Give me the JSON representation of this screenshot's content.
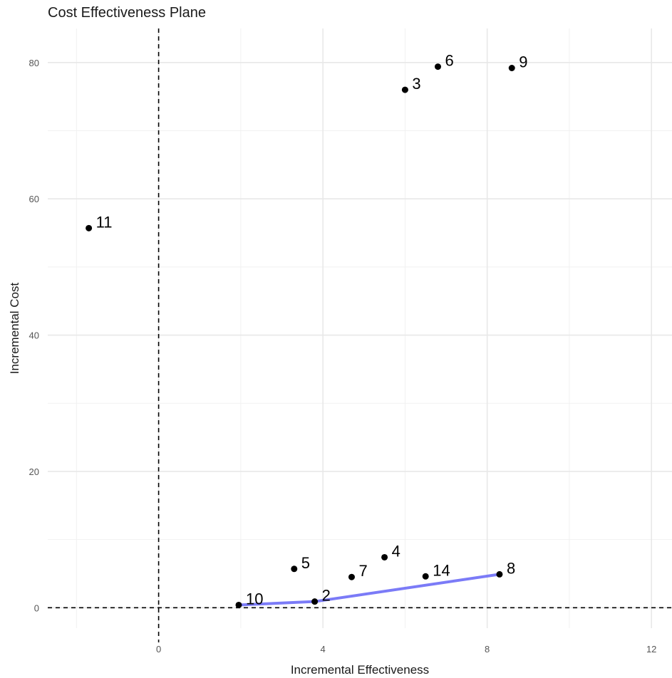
{
  "chart_data": {
    "type": "scatter",
    "title": "Cost Effectiveness Plane",
    "xlabel": "Incremental Effectiveness",
    "ylabel": "Incremental Cost",
    "xlim": [
      -2.7,
      12.5
    ],
    "ylim": [
      -3,
      85
    ],
    "x_ticks": [
      0,
      4,
      8,
      12
    ],
    "y_ticks": [
      0,
      20,
      40,
      60,
      80
    ],
    "grid": true,
    "reference_lines": {
      "x": 0,
      "y": 0,
      "style": "dashed"
    },
    "points": [
      {
        "label": "11",
        "x": -1.7,
        "y": 55.7
      },
      {
        "label": "3",
        "x": 6.0,
        "y": 76.0
      },
      {
        "label": "6",
        "x": 6.8,
        "y": 79.4
      },
      {
        "label": "9",
        "x": 8.6,
        "y": 79.2
      },
      {
        "label": "5",
        "x": 3.3,
        "y": 5.7
      },
      {
        "label": "4",
        "x": 5.5,
        "y": 7.4
      },
      {
        "label": "7",
        "x": 4.7,
        "y": 4.5
      },
      {
        "label": "14",
        "x": 6.5,
        "y": 4.6
      },
      {
        "label": "8",
        "x": 8.3,
        "y": 4.9
      },
      {
        "label": "10",
        "x": 1.95,
        "y": 0.4
      },
      {
        "label": "2",
        "x": 3.8,
        "y": 0.9
      }
    ],
    "frontier": {
      "color": "#7b7bf7",
      "points": [
        {
          "x": 1.95,
          "y": 0.4
        },
        {
          "x": 3.8,
          "y": 0.9
        },
        {
          "x": 8.3,
          "y": 4.9
        }
      ]
    }
  }
}
